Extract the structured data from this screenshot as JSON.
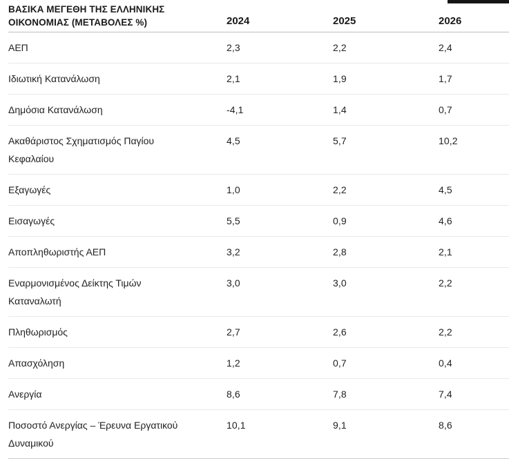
{
  "table": {
    "title": "ΒΑΣΙΚΑ ΜΕΓΕΘΗ ΤΗΣ ΕΛΛΗΝΙΚΗΣ\nΟΙΚΟΝΟΜΙΑΣ (ΜΕΤΑΒΟΛΕΣ %)",
    "columns": [
      "2024",
      "2025",
      "2026"
    ],
    "rows": [
      {
        "label": "ΑΕΠ",
        "values": [
          "2,3",
          "2,2",
          "2,4"
        ]
      },
      {
        "label": "Ιδιωτική Κατανάλωση",
        "values": [
          "2,1",
          "1,9",
          "1,7"
        ]
      },
      {
        "label": "Δημόσια Κατανάλωση",
        "values": [
          "-4,1",
          "1,4",
          "0,7"
        ]
      },
      {
        "label": "Ακαθάριστος Σχηματισμός Παγίου\nΚεφαλαίου",
        "values": [
          "4,5",
          "5,7",
          "10,2"
        ]
      },
      {
        "label": "Εξαγωγές",
        "values": [
          "1,0",
          "2,2",
          "4,5"
        ]
      },
      {
        "label": "Εισαγωγές",
        "values": [
          "5,5",
          "0,9",
          "4,6"
        ]
      },
      {
        "label": "Αποπληθωριστής ΑΕΠ",
        "values": [
          "3,2",
          "2,8",
          "2,1"
        ]
      },
      {
        "label": "Εναρμονισμένος Δείκτης Τιμών\nΚαταναλωτή",
        "values": [
          "3,0",
          "3,0",
          "2,2"
        ]
      },
      {
        "label": "Πληθωρισμός",
        "values": [
          "2,7",
          "2,6",
          "2,2"
        ]
      },
      {
        "label": "Απασχόληση",
        "values": [
          "1,2",
          "0,7",
          "0,4"
        ]
      },
      {
        "label": "Ανεργία",
        "values": [
          "8,6",
          "7,8",
          "7,4"
        ]
      },
      {
        "label": "Ποσοστό Ανεργίας – Έρευνα Εργατικού\nΔυναμικού",
        "values": [
          "10,1",
          "9,1",
          "8,6"
        ]
      }
    ]
  },
  "chart_data": {
    "type": "table",
    "title": "ΒΑΣΙΚΑ ΜΕΓΕΘΗ ΤΗΣ ΕΛΛΗΝΙΚΗΣ ΟΙΚΟΝΟΜΙΑΣ (ΜΕΤΑΒΟΛΕΣ %)",
    "categories": [
      "2024",
      "2025",
      "2026"
    ],
    "series": [
      {
        "name": "ΑΕΠ",
        "values": [
          2.3,
          2.2,
          2.4
        ]
      },
      {
        "name": "Ιδιωτική Κατανάλωση",
        "values": [
          2.1,
          1.9,
          1.7
        ]
      },
      {
        "name": "Δημόσια Κατανάλωση",
        "values": [
          -4.1,
          1.4,
          0.7
        ]
      },
      {
        "name": "Ακαθάριστος Σχηματισμός Παγίου Κεφαλαίου",
        "values": [
          4.5,
          5.7,
          10.2
        ]
      },
      {
        "name": "Εξαγωγές",
        "values": [
          1.0,
          2.2,
          4.5
        ]
      },
      {
        "name": "Εισαγωγές",
        "values": [
          5.5,
          0.9,
          4.6
        ]
      },
      {
        "name": "Αποπληθωριστής ΑΕΠ",
        "values": [
          3.2,
          2.8,
          2.1
        ]
      },
      {
        "name": "Εναρμονισμένος Δείκτης Τιμών Καταναλωτή",
        "values": [
          3.0,
          3.0,
          2.2
        ]
      },
      {
        "name": "Πληθωρισμός",
        "values": [
          2.7,
          2.6,
          2.2
        ]
      },
      {
        "name": "Απασχόληση",
        "values": [
          1.2,
          0.7,
          0.4
        ]
      },
      {
        "name": "Ανεργία",
        "values": [
          8.6,
          7.8,
          7.4
        ]
      },
      {
        "name": "Ποσοστό Ανεργίας – Έρευνα Εργατικού Δυναμικού",
        "values": [
          10.1,
          9.1,
          8.6
        ]
      }
    ],
    "decimal_separator": ",",
    "grid": "horizontal-rules-only",
    "legend_position": "none"
  },
  "colors": {
    "background": "#ffffff",
    "text": "#212121",
    "header_rule": "#bfbfbf",
    "row_rule": "#e9e9e9",
    "crop_artifact": "#161616"
  }
}
